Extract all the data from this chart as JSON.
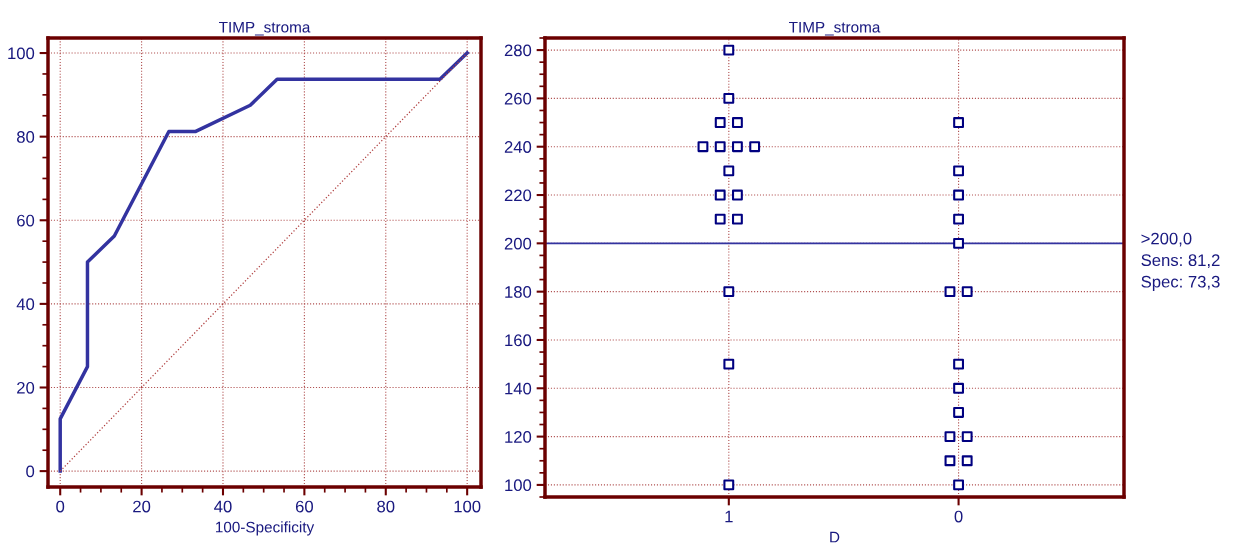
{
  "chart_data": [
    {
      "type": "line",
      "title": "TIMP_stroma",
      "xlabel": "100-Specificity",
      "xlim": [
        -3,
        103.4
      ],
      "ylim": [
        -3.8,
        103.6
      ],
      "xticks": [
        0,
        20,
        40,
        60,
        80,
        100
      ],
      "yticks": [
        0,
        20,
        40,
        60,
        80,
        100
      ],
      "grid": true,
      "legend": false,
      "marker": "none",
      "series": [
        {
          "color": "#3333a0",
          "x": [
            0,
            0,
            6.7,
            6.7,
            13.3,
            26.7,
            33.3,
            46.7,
            53.3,
            93.3,
            100
          ],
          "values": [
            0,
            12.5,
            25,
            50,
            56.25,
            81.25,
            81.25,
            87.5,
            93.75,
            93.75,
            100
          ]
        },
        {
          "color": "#b04040",
          "line_style": "dotted",
          "x": [
            0,
            100
          ],
          "values": [
            0,
            100
          ]
        }
      ]
    },
    {
      "type": "scatter",
      "title": "TIMP_stroma",
      "xlabel": "D",
      "categories": [
        "1",
        "0"
      ],
      "ylim": [
        95,
        285
      ],
      "yticks": [
        100,
        120,
        140,
        160,
        180,
        200,
        220,
        240,
        260,
        280
      ],
      "grid": true,
      "legend": false,
      "marker": "square",
      "series": [
        {
          "color": "#000080",
          "x": [
            "1",
            "1",
            "1",
            "1",
            "1",
            "1",
            "1",
            "1",
            "1",
            "1",
            "1",
            "1",
            "1",
            "1",
            "1",
            "1"
          ],
          "values": [
            280,
            260,
            250,
            250,
            240,
            240,
            240,
            240,
            230,
            220,
            220,
            210,
            210,
            180,
            150,
            100
          ]
        },
        {
          "color": "#000080",
          "x": [
            "0",
            "0",
            "0",
            "0",
            "0",
            "0",
            "0",
            "0",
            "0",
            "0",
            "0",
            "0",
            "0",
            "0",
            "0"
          ],
          "values": [
            250,
            230,
            220,
            210,
            200,
            180,
            180,
            150,
            140,
            130,
            120,
            120,
            110,
            110,
            100
          ]
        }
      ],
      "ref_lines": [
        {
          "axis": "y",
          "value": 200,
          "label": ">200,0\nSens: 81,2\nSpec: 73,3",
          "color": "#3333a0"
        }
      ]
    }
  ]
}
